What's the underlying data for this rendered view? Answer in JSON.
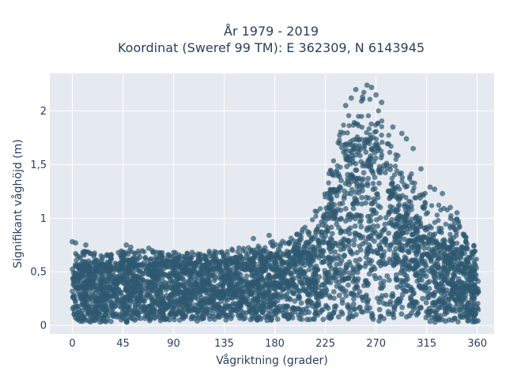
{
  "chart_data": {
    "type": "scatter",
    "title_lines": [
      "År 1979 - 2019",
      "Koordinat (Sweref 99 TM): E 362309, N 6143945"
    ],
    "xlabel": "Vågriktning (grader)",
    "ylabel": "Signifikant våghöjd (m)",
    "xlim": [
      -20,
      375
    ],
    "ylim": [
      -0.08,
      2.35
    ],
    "grid": true,
    "x_ticks": [
      {
        "value": 0,
        "label": "0"
      },
      {
        "value": 45,
        "label": "45"
      },
      {
        "value": 90,
        "label": "90"
      },
      {
        "value": 135,
        "label": "135"
      },
      {
        "value": 180,
        "label": "180"
      },
      {
        "value": 225,
        "label": "225"
      },
      {
        "value": 270,
        "label": "270"
      },
      {
        "value": 315,
        "label": "315"
      },
      {
        "value": 360,
        "label": "360"
      }
    ],
    "y_ticks": [
      {
        "value": 0,
        "label": "0"
      },
      {
        "value": 0.5,
        "label": "0,5"
      },
      {
        "value": 1,
        "label": "1"
      },
      {
        "value": 1.5,
        "label": "1,5"
      },
      {
        "value": 2,
        "label": "2"
      }
    ],
    "marker_color": "#2e5870",
    "marker_opacity": 0.7,
    "plot_background": "#e5e9f0",
    "grid_color": "#ffffff",
    "envelope": {
      "direction": [
        0,
        20,
        45,
        90,
        130,
        165,
        190,
        210,
        225,
        240,
        255,
        265,
        275,
        290,
        305,
        320,
        340,
        350,
        360
      ],
      "lower": [
        0.04,
        0.03,
        0.03,
        0.04,
        0.04,
        0.04,
        0.04,
        0.04,
        0.04,
        0.04,
        0.04,
        0.04,
        0.04,
        0.04,
        0.04,
        0.03,
        0.03,
        0.03,
        0.02
      ],
      "dense_upper": [
        0.55,
        0.55,
        0.56,
        0.57,
        0.58,
        0.62,
        0.66,
        0.76,
        1.02,
        1.52,
        1.72,
        1.7,
        1.55,
        1.2,
        1.0,
        0.85,
        0.72,
        0.65,
        0.58
      ],
      "scatter_upper": [
        0.72,
        0.68,
        0.7,
        0.7,
        0.7,
        0.76,
        0.8,
        0.95,
        1.3,
        1.9,
        2.2,
        2.18,
        1.95,
        1.65,
        1.35,
        1.2,
        1.05,
        0.82,
        0.72
      ]
    },
    "outliers": [
      {
        "x": 0,
        "y": 0.78
      },
      {
        "x": 3,
        "y": 0.77
      },
      {
        "x": 12,
        "y": 0.75
      },
      {
        "x": 48,
        "y": 0.75
      },
      {
        "x": 52,
        "y": 0.73
      },
      {
        "x": 68,
        "y": 0.72
      },
      {
        "x": 161,
        "y": 0.81
      },
      {
        "x": 175,
        "y": 0.84
      },
      {
        "x": 178,
        "y": 0.78
      },
      {
        "x": 243,
        "y": 2.05
      },
      {
        "x": 248,
        "y": 2.12
      },
      {
        "x": 252,
        "y": 2.2
      },
      {
        "x": 258,
        "y": 2.13
      },
      {
        "x": 262,
        "y": 2.24
      },
      {
        "x": 266,
        "y": 2.22
      },
      {
        "x": 270,
        "y": 2.15
      },
      {
        "x": 275,
        "y": 2.08
      },
      {
        "x": 285,
        "y": 1.85
      },
      {
        "x": 293,
        "y": 1.79
      },
      {
        "x": 297,
        "y": 1.74
      },
      {
        "x": 303,
        "y": 1.65
      },
      {
        "x": 310,
        "y": 1.46
      },
      {
        "x": 318,
        "y": 1.29
      },
      {
        "x": 322,
        "y": 1.27
      },
      {
        "x": 329,
        "y": 1.23
      },
      {
        "x": 336,
        "y": 1.1
      },
      {
        "x": 342,
        "y": 1.05
      },
      {
        "x": 350,
        "y": 0.82
      },
      {
        "x": 357,
        "y": 0.74
      }
    ]
  }
}
